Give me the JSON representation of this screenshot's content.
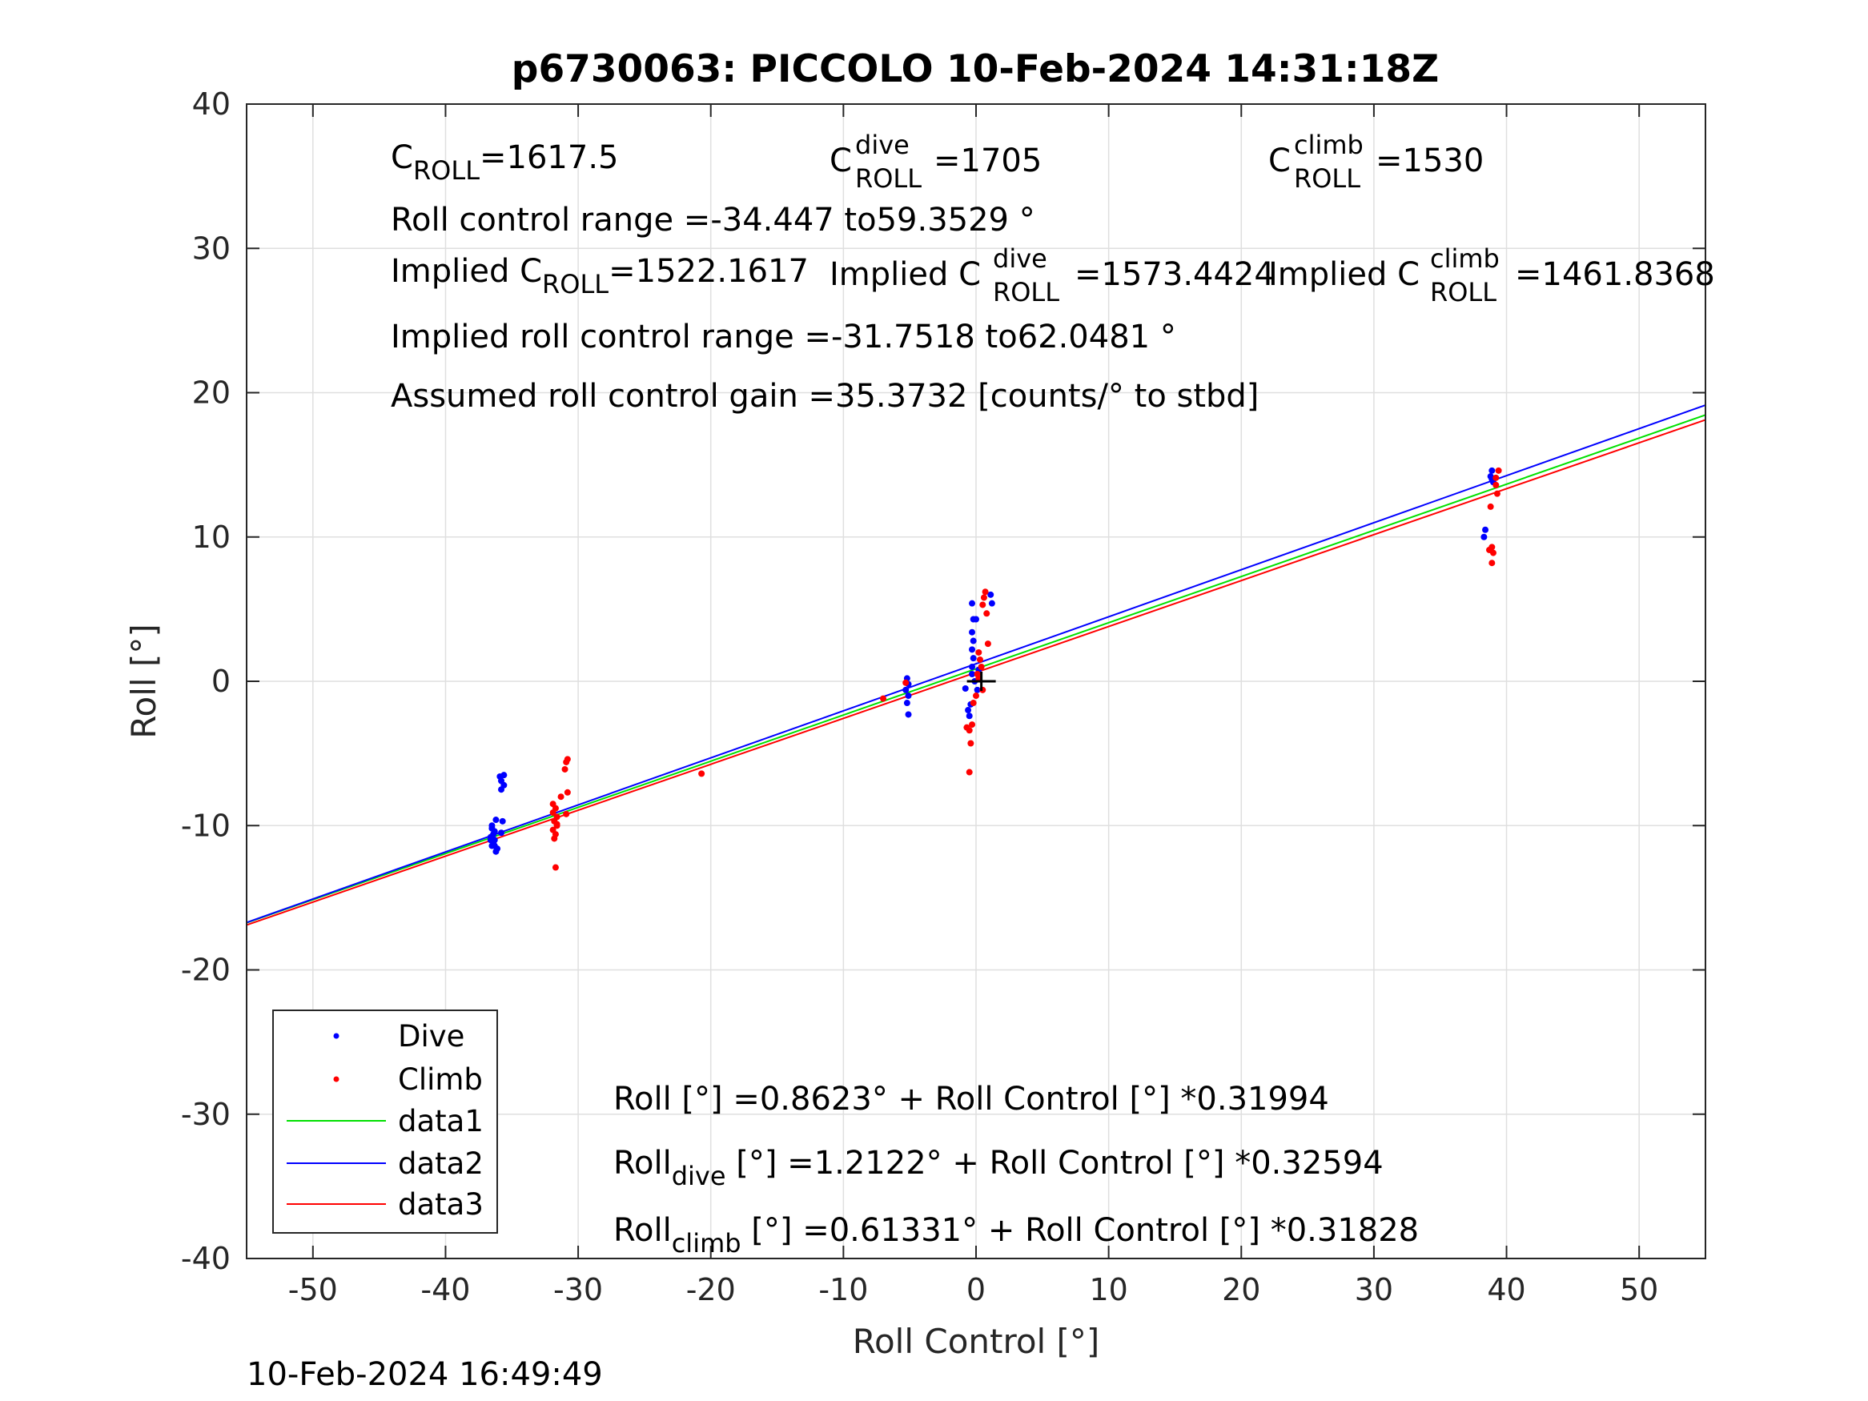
{
  "title": "p6730063: PICCOLO 10-Feb-2024 14:31:18Z",
  "timestamp": "10-Feb-2024 16:49:49",
  "annotations": {
    "c_roll": {
      "main": "C",
      "sub": "ROLL",
      "value": "=1617.5"
    },
    "c_roll_dive": {
      "main": "C",
      "sup": "dive",
      "sub": "ROLL",
      "value": "=1705"
    },
    "c_roll_climb": {
      "main": "C",
      "sup": "climb",
      "sub": "ROLL",
      "value": "=1530"
    },
    "roll_control_range": "Roll control range =-34.447 to59.3529 °",
    "implied_c_roll": {
      "main": "Implied C",
      "sub": "ROLL",
      "value": "=1522.1617"
    },
    "implied_c_roll_dive": {
      "main": "Implied C",
      "sup": "dive",
      "sub": "ROLL",
      "value": "=1573.4424"
    },
    "implied_c_roll_climb": {
      "main": "Implied C",
      "sup": "climb",
      "sub": "ROLL",
      "value": "=1461.8368"
    },
    "implied_range": "Implied roll control range =-31.7518 to62.0481 °",
    "gain": "Assumed roll control gain =35.3732 [counts/° to stbd]",
    "fit_all": "Roll [°] =0.8623° + Roll Control [°] *0.31994",
    "fit_dive": {
      "main": "Roll",
      "sub": "dive",
      "rest": " [°] =1.2122° + Roll Control [°] *0.32594"
    },
    "fit_climb": {
      "main": "Roll",
      "sub": "climb",
      "rest": " [°] =0.61331° + Roll Control [°] *0.31828"
    }
  },
  "chart_data": {
    "type": "scatter",
    "xlabel": "Roll Control [°]",
    "ylabel": "Roll [°]",
    "xlim": [
      -55,
      55
    ],
    "ylim": [
      -40,
      40
    ],
    "xticks": [
      -50,
      -40,
      -30,
      -20,
      -10,
      0,
      10,
      20,
      30,
      40,
      50
    ],
    "yticks": [
      -40,
      -30,
      -20,
      -10,
      0,
      10,
      20,
      30,
      40
    ],
    "grid": true,
    "legend_position": "bottom-left",
    "legend": [
      "Dive",
      "Climb",
      "data1",
      "data2",
      "data3"
    ],
    "series": [
      {
        "name": "Dive",
        "kind": "points",
        "color": "#0000ff",
        "points": [
          [
            -36.5,
            -10.2
          ],
          [
            -36.4,
            -10.6
          ],
          [
            -36.3,
            -11.0
          ],
          [
            -36.5,
            -11.4
          ],
          [
            -36.2,
            -11.8
          ],
          [
            -36.6,
            -10.8
          ],
          [
            -36.3,
            -10.4
          ],
          [
            -36.4,
            -11.2
          ],
          [
            -36.1,
            -11.6
          ],
          [
            -36.5,
            -10.0
          ],
          [
            -36.2,
            -9.6
          ],
          [
            -36.6,
            -11.0
          ],
          [
            -36.3,
            -11.4
          ],
          [
            -35.8,
            -10.5
          ],
          [
            -35.9,
            -6.6
          ],
          [
            -35.8,
            -6.9
          ],
          [
            -35.6,
            -7.2
          ],
          [
            -35.8,
            -7.5
          ],
          [
            -35.6,
            -6.5
          ],
          [
            -35.7,
            -9.7
          ],
          [
            -5.2,
            0.2
          ],
          [
            -5.1,
            -0.2
          ],
          [
            -5.3,
            -0.6
          ],
          [
            -5.1,
            -1.0
          ],
          [
            -5.2,
            -1.5
          ],
          [
            -5.1,
            -2.3
          ],
          [
            -0.8,
            -0.5
          ],
          [
            -0.6,
            -2.0
          ],
          [
            -0.5,
            -2.4
          ],
          [
            -0.4,
            -1.6
          ],
          [
            -0.3,
            0.5
          ],
          [
            -0.3,
            1.0
          ],
          [
            -0.2,
            1.6
          ],
          [
            -0.3,
            2.2
          ],
          [
            -0.2,
            2.8
          ],
          [
            -0.3,
            3.4
          ],
          [
            -0.2,
            4.3
          ],
          [
            -0.3,
            5.4
          ],
          [
            -0.1,
            0.0
          ],
          [
            0.1,
            -0.6
          ],
          [
            0.2,
            0.8
          ],
          [
            0.0,
            4.3
          ],
          [
            1.1,
            6.0
          ],
          [
            1.2,
            5.4
          ],
          [
            38.4,
            10.5
          ],
          [
            38.3,
            10.0
          ],
          [
            38.8,
            14.2
          ],
          [
            38.9,
            14.6
          ],
          [
            39.0,
            13.8
          ],
          [
            38.9,
            14.0
          ]
        ]
      },
      {
        "name": "Climb",
        "kind": "points",
        "color": "#ff0000",
        "points": [
          [
            -31.9,
            -8.5
          ],
          [
            -31.7,
            -8.8
          ],
          [
            -31.9,
            -9.1
          ],
          [
            -31.6,
            -9.4
          ],
          [
            -31.8,
            -9.7
          ],
          [
            -31.6,
            -10.0
          ],
          [
            -31.9,
            -10.3
          ],
          [
            -31.7,
            -10.6
          ],
          [
            -31.6,
            -9.9
          ],
          [
            -31.8,
            -10.9
          ],
          [
            -31.7,
            -12.9
          ],
          [
            -31.3,
            -8.0
          ],
          [
            -30.9,
            -5.6
          ],
          [
            -31.0,
            -6.1
          ],
          [
            -30.8,
            -5.4
          ],
          [
            -30.8,
            -7.7
          ],
          [
            -30.9,
            -9.2
          ],
          [
            -20.7,
            -6.4
          ],
          [
            -7.0,
            -1.2
          ],
          [
            -5.3,
            -0.1
          ],
          [
            -0.7,
            -3.2
          ],
          [
            -0.5,
            -3.4
          ],
          [
            -0.4,
            -4.3
          ],
          [
            -0.5,
            -6.3
          ],
          [
            -0.3,
            -3.0
          ],
          [
            -0.2,
            -1.5
          ],
          [
            0.0,
            -1.0
          ],
          [
            0.1,
            0.5
          ],
          [
            0.3,
            1.5
          ],
          [
            0.2,
            2.0
          ],
          [
            0.4,
            1.0
          ],
          [
            0.5,
            5.3
          ],
          [
            0.6,
            5.8
          ],
          [
            0.7,
            6.2
          ],
          [
            0.8,
            4.7
          ],
          [
            0.9,
            2.6
          ],
          [
            0.2,
            0.2
          ],
          [
            0.5,
            -0.6
          ],
          [
            38.8,
            12.1
          ],
          [
            38.9,
            9.3
          ],
          [
            38.7,
            9.1
          ],
          [
            38.9,
            8.2
          ],
          [
            39.0,
            8.9
          ],
          [
            39.2,
            13.6
          ],
          [
            39.4,
            14.6
          ],
          [
            39.3,
            13.0
          ],
          [
            39.2,
            14.1
          ]
        ]
      },
      {
        "name": "data1",
        "kind": "line",
        "color": "#00e000",
        "intercept": 0.8623,
        "slope": 0.31994
      },
      {
        "name": "data2",
        "kind": "line",
        "color": "#0000ff",
        "intercept": 1.2122,
        "slope": 0.32594
      },
      {
        "name": "data3",
        "kind": "line",
        "color": "#ff0000",
        "intercept": 0.61331,
        "slope": 0.31828
      }
    ],
    "marker": {
      "x": 0.4,
      "y": 0,
      "kind": "plus",
      "color": "#000000"
    }
  }
}
